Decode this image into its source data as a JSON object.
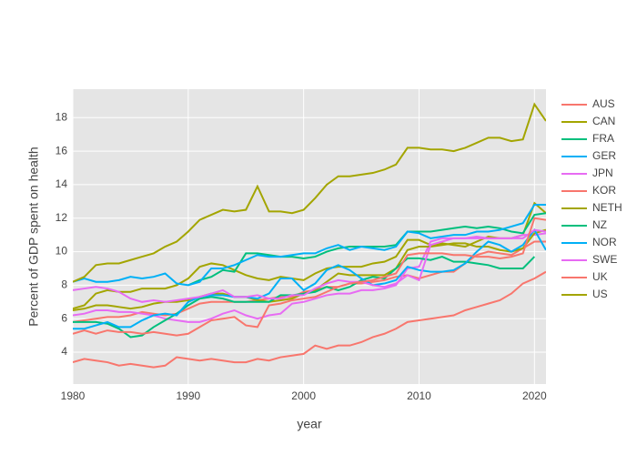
{
  "chart_data": {
    "type": "line",
    "xlabel": "year",
    "ylabel": "Percent of GDP spent on health",
    "x": [
      1980,
      1981,
      1982,
      1983,
      1984,
      1985,
      1986,
      1987,
      1988,
      1989,
      1990,
      1991,
      1992,
      1993,
      1994,
      1995,
      1996,
      1997,
      1998,
      1999,
      2000,
      2001,
      2002,
      2003,
      2004,
      2005,
      2006,
      2007,
      2008,
      2009,
      2010,
      2011,
      2012,
      2013,
      2014,
      2015,
      2016,
      2017,
      2018,
      2019,
      2020,
      2021
    ],
    "xlim": [
      1980,
      2021
    ],
    "xticks": [
      1980,
      1990,
      2000,
      2010,
      2020
    ],
    "ylim": [
      2.1,
      19.7
    ],
    "yticks": [
      4,
      6,
      8,
      10,
      12,
      14,
      16,
      18
    ],
    "grid": true,
    "legend": "right",
    "series": [
      {
        "name": "AUS",
        "color": "#F8766D",
        "values": [
          5.8,
          5.9,
          6.0,
          6.1,
          6.1,
          6.2,
          6.4,
          6.3,
          6.2,
          6.3,
          6.6,
          6.9,
          7.0,
          7.0,
          7.0,
          7.0,
          7.1,
          7.2,
          7.3,
          7.3,
          7.6,
          7.7,
          7.9,
          7.9,
          8.1,
          8.1,
          8.2,
          8.3,
          8.5,
          8.6,
          8.4,
          8.6,
          8.8,
          8.8,
          9.3,
          9.8,
          10.0,
          9.9,
          9.8,
          10.2,
          10.6,
          10.6
        ]
      },
      {
        "name": "CAN",
        "color": "#A3A500",
        "values": [
          6.6,
          6.8,
          7.5,
          7.7,
          7.6,
          7.6,
          7.8,
          7.8,
          7.8,
          8.0,
          8.4,
          9.1,
          9.3,
          9.2,
          8.9,
          8.6,
          8.4,
          8.3,
          8.5,
          8.4,
          8.3,
          8.7,
          9.0,
          9.1,
          9.1,
          9.1,
          9.3,
          9.4,
          9.7,
          10.7,
          10.7,
          10.4,
          10.5,
          10.4,
          10.3,
          10.6,
          10.9,
          10.8,
          10.8,
          11.0,
          12.9,
          12.3
        ]
      },
      {
        "name": "FRA",
        "color": "#00BF7D",
        "values": [
          null,
          null,
          null,
          null,
          null,
          null,
          null,
          null,
          null,
          null,
          8.0,
          8.3,
          8.5,
          8.9,
          8.8,
          9.9,
          9.9,
          9.8,
          9.7,
          9.7,
          9.6,
          9.7,
          10.0,
          10.2,
          10.3,
          10.3,
          10.3,
          10.3,
          10.4,
          11.2,
          11.2,
          11.2,
          11.3,
          11.4,
          11.5,
          11.4,
          11.5,
          11.4,
          11.2,
          11.1,
          12.2,
          12.3
        ]
      },
      {
        "name": "GER",
        "color": "#00B0F6",
        "values": [
          8.2,
          8.4,
          8.2,
          8.2,
          8.3,
          8.5,
          8.4,
          8.5,
          8.7,
          8.1,
          8.0,
          8.2,
          9.0,
          9.0,
          9.2,
          9.5,
          9.8,
          9.7,
          9.7,
          9.8,
          9.9,
          9.9,
          10.2,
          10.4,
          10.1,
          10.3,
          10.2,
          10.1,
          10.3,
          11.2,
          11.1,
          10.8,
          10.9,
          11.0,
          11.0,
          11.2,
          11.2,
          11.3,
          11.5,
          11.7,
          12.8,
          12.8
        ]
      },
      {
        "name": "JPN",
        "color": "#E76BF3",
        "values": [
          6.2,
          6.3,
          6.5,
          6.5,
          6.4,
          6.4,
          6.3,
          6.2,
          6.0,
          5.9,
          5.8,
          5.8,
          6.0,
          6.3,
          6.5,
          6.2,
          6.0,
          6.2,
          6.3,
          6.9,
          7.0,
          7.2,
          7.4,
          7.5,
          7.5,
          7.7,
          7.7,
          7.8,
          8.0,
          9.0,
          9.1,
          10.6,
          10.8,
          10.8,
          10.8,
          10.9,
          10.8,
          10.8,
          10.8,
          11.0,
          11.0,
          11.1
        ]
      },
      {
        "name": "KOR",
        "color": "#F8766D",
        "values": [
          3.4,
          3.6,
          3.5,
          3.4,
          3.2,
          3.3,
          3.2,
          3.1,
          3.2,
          3.7,
          3.6,
          3.5,
          3.6,
          3.5,
          3.4,
          3.4,
          3.6,
          3.5,
          3.7,
          3.8,
          3.9,
          4.4,
          4.2,
          4.4,
          4.4,
          4.6,
          4.9,
          5.1,
          5.4,
          5.8,
          5.9,
          6.0,
          6.1,
          6.2,
          6.5,
          6.7,
          6.9,
          7.1,
          7.5,
          8.1,
          8.4,
          8.8
        ]
      },
      {
        "name": "NETH",
        "color": "#A3A500",
        "values": [
          6.5,
          6.6,
          6.8,
          6.8,
          6.7,
          6.6,
          6.7,
          6.9,
          7.0,
          7.0,
          7.1,
          7.3,
          7.5,
          7.5,
          7.3,
          7.3,
          7.1,
          7.0,
          7.1,
          7.2,
          7.5,
          7.7,
          8.2,
          8.7,
          8.6,
          8.6,
          8.6,
          8.6,
          9.0,
          10.1,
          10.3,
          10.3,
          10.4,
          10.5,
          10.5,
          10.3,
          10.3,
          10.1,
          10.0,
          10.2,
          11.1,
          11.3
        ]
      },
      {
        "name": "NZ",
        "color": "#00BF7D",
        "values": [
          5.8,
          5.8,
          5.8,
          5.7,
          5.4,
          4.9,
          5.0,
          5.5,
          5.9,
          6.3,
          6.8,
          7.2,
          7.3,
          7.2,
          7.0,
          7.0,
          7.0,
          7.0,
          7.4,
          7.4,
          7.5,
          7.6,
          7.9,
          7.7,
          7.9,
          8.3,
          8.5,
          8.4,
          9.0,
          9.6,
          9.6,
          9.5,
          9.7,
          9.4,
          9.4,
          9.3,
          9.2,
          9.0,
          9.0,
          9.0,
          9.7,
          null
        ]
      },
      {
        "name": "NOR",
        "color": "#00B0F6",
        "values": [
          5.4,
          5.4,
          5.6,
          5.8,
          5.5,
          5.5,
          5.9,
          6.2,
          6.3,
          6.2,
          7.0,
          7.3,
          7.4,
          7.4,
          7.3,
          7.3,
          7.2,
          7.5,
          8.4,
          8.4,
          7.7,
          8.1,
          8.9,
          9.2,
          8.9,
          8.4,
          8.0,
          8.1,
          8.3,
          9.1,
          8.9,
          8.8,
          8.8,
          8.9,
          9.3,
          10.0,
          10.6,
          10.4,
          10.0,
          10.4,
          11.3,
          10.1
        ]
      },
      {
        "name": "SWE",
        "color": "#E76BF3",
        "values": [
          7.7,
          7.8,
          7.9,
          7.8,
          7.6,
          7.2,
          7.0,
          7.1,
          7.0,
          7.1,
          7.2,
          7.3,
          7.5,
          7.7,
          7.3,
          7.3,
          7.4,
          7.2,
          7.2,
          7.4,
          7.4,
          7.8,
          8.1,
          8.3,
          8.2,
          8.2,
          8.0,
          7.9,
          8.1,
          8.6,
          8.3,
          10.4,
          10.6,
          10.8,
          10.8,
          10.8,
          10.8,
          10.8,
          10.8,
          10.8,
          11.3,
          11.2
        ]
      },
      {
        "name": "UK",
        "color": "#F8766D",
        "values": [
          5.1,
          5.3,
          5.1,
          5.3,
          5.2,
          5.2,
          5.1,
          5.2,
          5.1,
          5.0,
          5.1,
          5.5,
          5.9,
          6.0,
          6.1,
          5.6,
          5.5,
          6.8,
          6.9,
          7.1,
          7.2,
          7.3,
          7.6,
          7.9,
          8.1,
          8.2,
          8.3,
          8.5,
          8.7,
          9.8,
          9.9,
          9.9,
          9.9,
          9.8,
          9.8,
          9.7,
          9.7,
          9.6,
          9.7,
          9.9,
          12.0,
          11.9
        ]
      },
      {
        "name": "US",
        "color": "#A3A500",
        "values": [
          8.2,
          8.5,
          9.2,
          9.3,
          9.3,
          9.5,
          9.7,
          9.9,
          10.3,
          10.6,
          11.2,
          11.9,
          12.2,
          12.5,
          12.4,
          12.5,
          13.9,
          12.4,
          12.4,
          12.3,
          12.5,
          13.2,
          14.0,
          14.5,
          14.5,
          14.6,
          14.7,
          14.9,
          15.2,
          16.2,
          16.2,
          16.1,
          16.1,
          16.0,
          16.2,
          16.5,
          16.8,
          16.8,
          16.6,
          16.7,
          18.8,
          17.8
        ]
      }
    ]
  }
}
